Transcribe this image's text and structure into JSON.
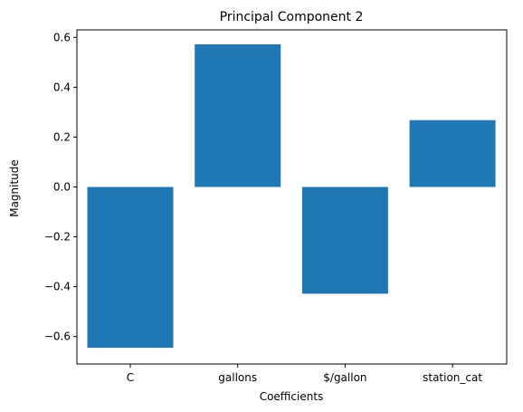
{
  "chart_data": {
    "type": "bar",
    "title": "Principal Component 2",
    "xlabel": "Coefficients",
    "ylabel": "Magnitude",
    "categories": [
      "C",
      "gallons",
      "$/gallon",
      "station_cat"
    ],
    "values": [
      -0.645,
      0.572,
      -0.428,
      0.268
    ],
    "ylim": [
      -0.71,
      0.63
    ],
    "yticks": [
      -0.6,
      -0.4,
      -0.2,
      0.0,
      0.2,
      0.4,
      0.6
    ],
    "ytick_labels": [
      "−0.6",
      "−0.4",
      "−0.2",
      "0.0",
      "0.2",
      "0.4",
      "0.6"
    ],
    "bar_color": "#1f77b4",
    "grid": false,
    "legend": "none"
  }
}
